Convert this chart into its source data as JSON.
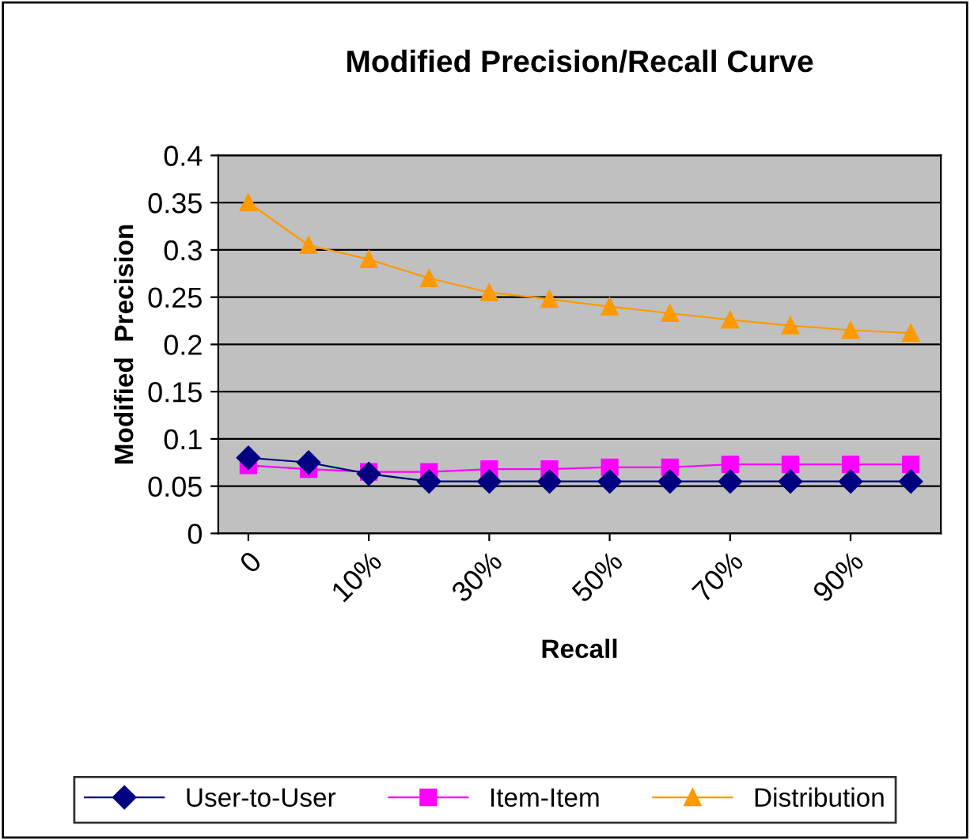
{
  "chart_data": {
    "type": "line",
    "title": "Modified Precision/Recall Curve",
    "xlabel": "Recall",
    "ylabel": "Modified  Precision",
    "categories": [
      "0",
      null,
      "10%",
      null,
      "30%",
      null,
      "50%",
      null,
      "70%",
      null,
      "90%",
      null
    ],
    "series": [
      {
        "name": "User-to-User",
        "color": "#000080",
        "marker": "diamond",
        "values": [
          0.08,
          0.075,
          0.063,
          0.055,
          0.055,
          0.055,
          0.055,
          0.055,
          0.055,
          0.055,
          0.055,
          0.055
        ]
      },
      {
        "name": "Item-Item",
        "color": "#ff00ff",
        "marker": "square",
        "values": [
          0.072,
          0.068,
          0.065,
          0.065,
          0.068,
          0.068,
          0.07,
          0.07,
          0.073,
          0.073,
          0.073,
          0.073
        ]
      },
      {
        "name": "Distribution",
        "color": "#ff9900",
        "marker": "triangle",
        "values": [
          0.35,
          0.305,
          0.29,
          0.27,
          0.255,
          0.248,
          0.24,
          0.233,
          0.226,
          0.22,
          0.215,
          0.212
        ]
      }
    ],
    "ylim": [
      0,
      0.4
    ],
    "yticks": [
      0,
      0.05,
      0.1,
      0.15,
      0.2,
      0.25,
      0.3,
      0.35,
      0.4
    ],
    "grid": "y",
    "legend": "bottom"
  }
}
